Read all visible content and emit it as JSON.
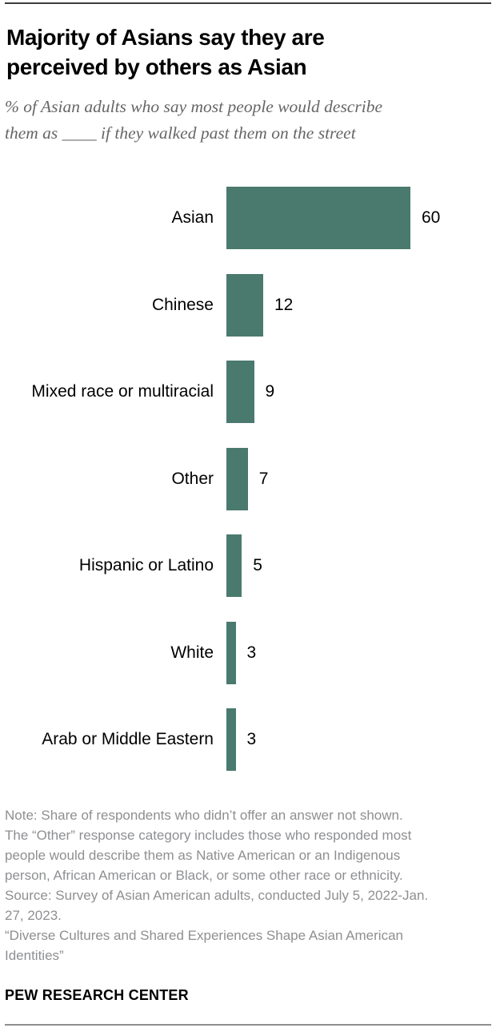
{
  "header": {
    "title_lines": [
      "Majority of Asians say they are",
      "perceived by others as Asian"
    ],
    "subtitle_lines": [
      "% of Asian adults who say most people would describe",
      "them as ____ if they walked past them on the street"
    ]
  },
  "chart_data": {
    "type": "bar",
    "orientation": "horizontal",
    "categories": [
      "Asian",
      "Chinese",
      "Mixed race or multiracial",
      "Other",
      "Hispanic or Latino",
      "White",
      "Arab or Middle Eastern"
    ],
    "values": [
      60,
      12,
      9,
      7,
      5,
      3,
      3
    ],
    "value_labels_shown": true,
    "bar_color": "#4a7a6d",
    "xlim": [
      0,
      60
    ],
    "grid": false,
    "axis_ticks_shown": false
  },
  "footer": {
    "note_lines": [
      "Note: Share of respondents who didn’t offer an answer not shown.",
      "The “Other” response category includes those who responded most",
      "people would describe them as Native American or an Indigenous",
      "person, African American or Black, or some other race or ethnicity.",
      "Source: Survey of Asian American adults, conducted July 5, 2022-Jan.",
      "27, 2023.",
      "“Diverse Cultures and Shared Experiences Shape Asian American",
      "Identities”"
    ],
    "brand": "PEW RESEARCH CENTER"
  }
}
